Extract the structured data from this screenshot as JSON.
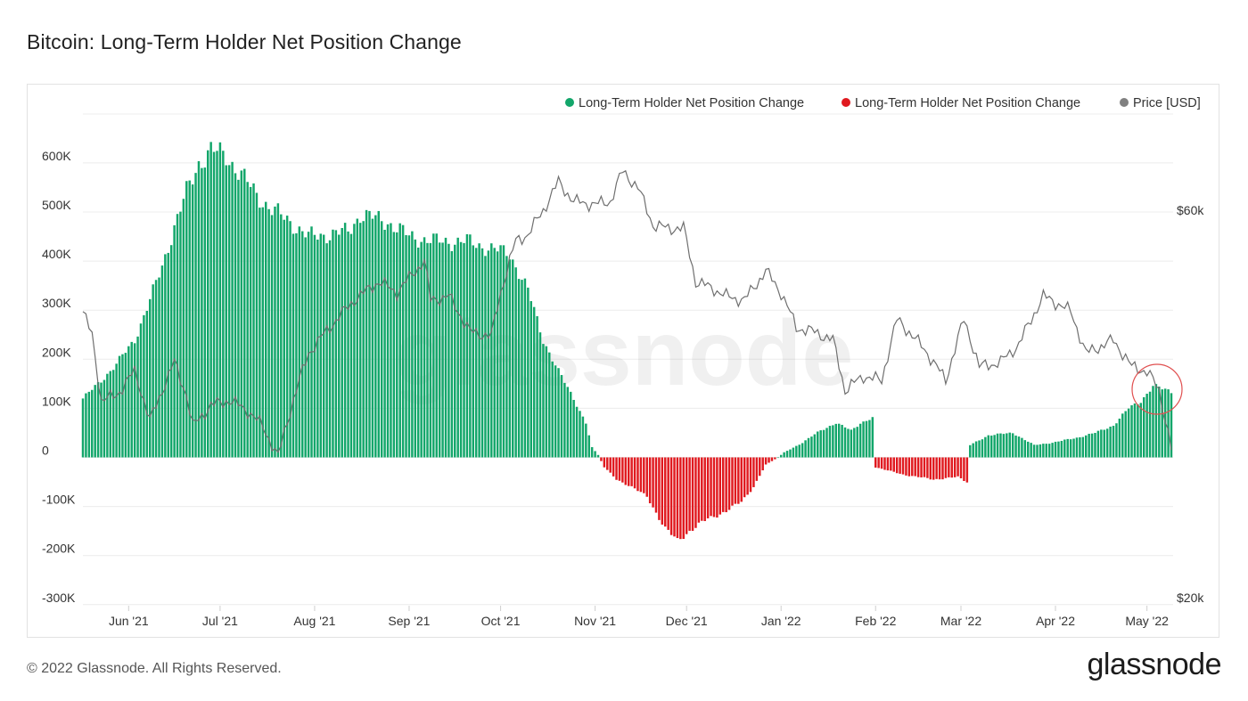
{
  "header": {
    "title": "Bitcoin: Long-Term Holder Net Position Change"
  },
  "footer": {
    "copyright": "© 2022 Glassnode. All Rights Reserved.",
    "brand": "glassnode"
  },
  "watermark": "glassnode",
  "colors": {
    "positive": "#12a66a",
    "negative": "#e0191f",
    "price": "#6f6f6f",
    "grid": "#ececec",
    "annotation": "#e05050"
  },
  "chart_data": {
    "type": "bar",
    "title": "Bitcoin: Long-Term Holder Net Position Change",
    "legend": [
      {
        "label": "Long-Term Holder Net Position Change",
        "color": "#12a66a"
      },
      {
        "label": "Long-Term Holder Net Position Change",
        "color": "#e0191f"
      },
      {
        "label": "Price [USD]",
        "color": "#808080"
      }
    ],
    "legend_position": "top-right",
    "y_left": {
      "ticks": [
        "600K",
        "500K",
        "400K",
        "300K",
        "200K",
        "100K",
        "0",
        "-100K",
        "-200K",
        "-300K"
      ],
      "range": [
        -300000,
        700000
      ]
    },
    "y_right": {
      "ticks": [
        "$60k",
        "$20k"
      ],
      "scale": "log",
      "range": [
        20000,
        80000
      ]
    },
    "x_ticks": [
      "Jun '21",
      "Jul '21",
      "Aug '21",
      "Sep '21",
      "Oct '21",
      "Nov '21",
      "Dec '21",
      "Jan '22",
      "Feb '22",
      "Mar '22",
      "Apr '22",
      "May '22"
    ],
    "date_range": [
      "2021-05-17",
      "2022-05-09"
    ],
    "net_position_keypoints": [
      [
        "2021-05-17",
        120000
      ],
      [
        "2021-05-22",
        150000
      ],
      [
        "2021-05-28",
        190000
      ],
      [
        "2021-06-03",
        240000
      ],
      [
        "2021-06-08",
        320000
      ],
      [
        "2021-06-12",
        390000
      ],
      [
        "2021-06-16",
        470000
      ],
      [
        "2021-06-20",
        540000
      ],
      [
        "2021-06-24",
        600000
      ],
      [
        "2021-06-28",
        625000
      ],
      [
        "2021-07-03",
        615000
      ],
      [
        "2021-07-08",
        575000
      ],
      [
        "2021-07-13",
        535000
      ],
      [
        "2021-07-18",
        505000
      ],
      [
        "2021-07-24",
        480000
      ],
      [
        "2021-07-30",
        450000
      ],
      [
        "2021-08-06",
        455000
      ],
      [
        "2021-08-12",
        460000
      ],
      [
        "2021-08-16",
        495000
      ],
      [
        "2021-08-25",
        480000
      ],
      [
        "2021-09-01",
        450000
      ],
      [
        "2021-09-10",
        440000
      ],
      [
        "2021-09-20",
        440000
      ],
      [
        "2021-09-28",
        425000
      ],
      [
        "2021-10-04",
        415000
      ],
      [
        "2021-10-10",
        340000
      ],
      [
        "2021-10-15",
        240000
      ],
      [
        "2021-10-20",
        175000
      ],
      [
        "2021-10-25",
        120000
      ],
      [
        "2021-10-29",
        70000
      ],
      [
        "2021-10-31",
        20000
      ],
      [
        "2021-11-02",
        5000
      ],
      [
        "2021-11-04",
        -20000
      ],
      [
        "2021-11-08",
        -45000
      ],
      [
        "2021-11-13",
        -60000
      ],
      [
        "2021-11-18",
        -80000
      ],
      [
        "2021-11-24",
        -145000
      ],
      [
        "2021-11-28",
        -170000
      ],
      [
        "2021-12-02",
        -150000
      ],
      [
        "2021-12-08",
        -125000
      ],
      [
        "2021-12-14",
        -110000
      ],
      [
        "2021-12-19",
        -90000
      ],
      [
        "2021-12-23",
        -60000
      ],
      [
        "2021-12-27",
        -15000
      ],
      [
        "2021-12-31",
        0
      ],
      [
        "2022-01-02",
        10000
      ],
      [
        "2022-01-08",
        30000
      ],
      [
        "2022-01-14",
        55000
      ],
      [
        "2022-01-19",
        70000
      ],
      [
        "2022-01-24",
        55000
      ],
      [
        "2022-01-27",
        70000
      ],
      [
        "2022-01-31",
        80000
      ],
      [
        "2022-02-01",
        -20000
      ],
      [
        "2022-02-10",
        -35000
      ],
      [
        "2022-02-20",
        -45000
      ],
      [
        "2022-02-28",
        -40000
      ],
      [
        "2022-03-03",
        -50000
      ],
      [
        "2022-03-04",
        25000
      ],
      [
        "2022-03-10",
        45000
      ],
      [
        "2022-03-18",
        50000
      ],
      [
        "2022-03-25",
        25000
      ],
      [
        "2022-03-31",
        30000
      ],
      [
        "2022-04-08",
        40000
      ],
      [
        "2022-04-14",
        50000
      ],
      [
        "2022-04-20",
        65000
      ],
      [
        "2022-04-25",
        100000
      ],
      [
        "2022-04-29",
        115000
      ],
      [
        "2022-05-03",
        145000
      ],
      [
        "2022-05-09",
        135000
      ]
    ],
    "price_usd_keypoints": [
      [
        "2021-05-17",
        45000
      ],
      [
        "2021-05-20",
        42000
      ],
      [
        "2021-05-23",
        35000
      ],
      [
        "2021-05-28",
        35500
      ],
      [
        "2021-06-03",
        38000
      ],
      [
        "2021-06-08",
        33000
      ],
      [
        "2021-06-12",
        36000
      ],
      [
        "2021-06-16",
        39000
      ],
      [
        "2021-06-20",
        35500
      ],
      [
        "2021-06-22",
        32500
      ],
      [
        "2021-06-28",
        34500
      ],
      [
        "2021-07-04",
        35000
      ],
      [
        "2021-07-10",
        34000
      ],
      [
        "2021-07-15",
        32500
      ],
      [
        "2021-07-20",
        29800
      ],
      [
        "2021-07-24",
        34000
      ],
      [
        "2021-07-30",
        40000
      ],
      [
        "2021-08-07",
        43500
      ],
      [
        "2021-08-14",
        46500
      ],
      [
        "2021-08-22",
        49000
      ],
      [
        "2021-08-28",
        47500
      ],
      [
        "2021-09-06",
        52000
      ],
      [
        "2021-09-08",
        46500
      ],
      [
        "2021-09-14",
        47000
      ],
      [
        "2021-09-21",
        42500
      ],
      [
        "2021-09-28",
        42000
      ],
      [
        "2021-10-01",
        47500
      ],
      [
        "2021-10-06",
        55000
      ],
      [
        "2021-10-10",
        56000
      ],
      [
        "2021-10-15",
        60000
      ],
      [
        "2021-10-20",
        65000
      ],
      [
        "2021-10-25",
        61500
      ],
      [
        "2021-11-01",
        61000
      ],
      [
        "2021-11-06",
        61500
      ],
      [
        "2021-11-10",
        67000
      ],
      [
        "2021-11-15",
        64000
      ],
      [
        "2021-11-20",
        57500
      ],
      [
        "2021-11-25",
        57000
      ],
      [
        "2021-11-30",
        57000
      ],
      [
        "2021-12-04",
        49000
      ],
      [
        "2021-12-10",
        48000
      ],
      [
        "2021-12-14",
        47000
      ],
      [
        "2021-12-20",
        46500
      ],
      [
        "2021-12-27",
        50500
      ],
      [
        "2022-01-01",
        47500
      ],
      [
        "2022-01-06",
        43000
      ],
      [
        "2022-01-12",
        42500
      ],
      [
        "2022-01-18",
        41500
      ],
      [
        "2022-01-22",
        36000
      ],
      [
        "2022-01-28",
        37500
      ],
      [
        "2022-02-03",
        37000
      ],
      [
        "2022-02-08",
        44000
      ],
      [
        "2022-02-12",
        42500
      ],
      [
        "2022-02-18",
        40000
      ],
      [
        "2022-02-24",
        37000
      ],
      [
        "2022-03-02",
        44000
      ],
      [
        "2022-03-07",
        38500
      ],
      [
        "2022-03-14",
        39000
      ],
      [
        "2022-03-20",
        41000
      ],
      [
        "2022-03-28",
        47000
      ],
      [
        "2022-04-02",
        46000
      ],
      [
        "2022-04-06",
        45000
      ],
      [
        "2022-04-11",
        40000
      ],
      [
        "2022-04-20",
        41500
      ],
      [
        "2022-04-26",
        38500
      ],
      [
        "2022-05-01",
        38000
      ],
      [
        "2022-05-05",
        36000
      ],
      [
        "2022-05-09",
        30500
      ]
    ],
    "annotation": {
      "type": "circle",
      "note": "highlighted recent positive accumulation"
    }
  }
}
